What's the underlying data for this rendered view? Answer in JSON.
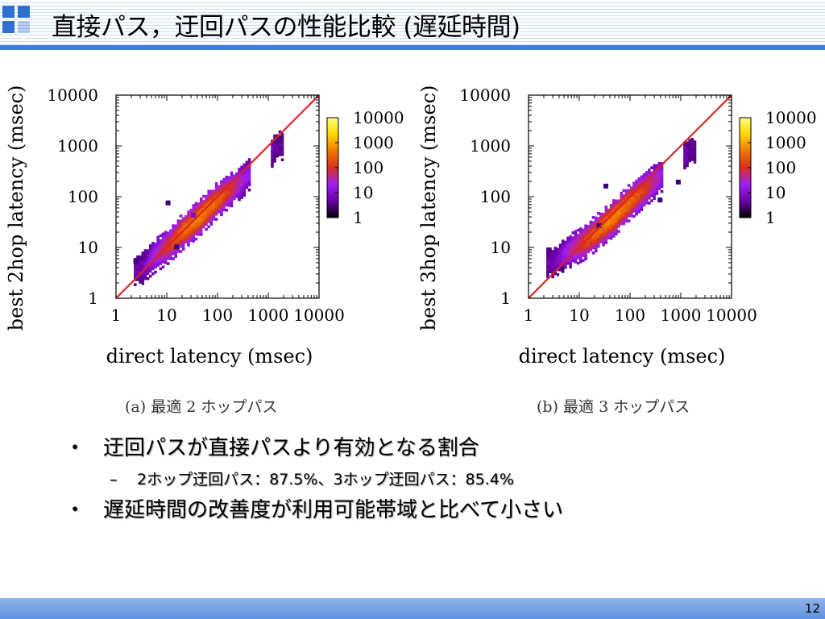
{
  "slide": {
    "title": "直接パス，迂回パスの性能比較 (遅延時間)",
    "page_number": "12",
    "bullets": [
      {
        "level": 1,
        "mark": "・",
        "text": "迂回パスが直接パスより有効となる割合"
      },
      {
        "level": 2,
        "mark": "–",
        "text": "2ホップ迂回パス：87.5%、3ホップ迂回パス：85.4%"
      },
      {
        "level": 1,
        "mark": "・",
        "text": "遅延時間の改善度が利用可能帯域と比べて小さい"
      }
    ]
  },
  "chart_data": [
    {
      "type": "heatmap",
      "caption": "(a) 最適 2 ホップパス",
      "xlabel": "direct latency (msec)",
      "ylabel": "best 2hop latency (msec)",
      "x_scale": "log",
      "y_scale": "log",
      "xlim": [
        1,
        10000
      ],
      "ylim": [
        1,
        10000
      ],
      "x_ticks": [
        "1",
        "10",
        "100",
        "1000",
        "10000"
      ],
      "y_ticks": [
        "1",
        "10",
        "100",
        "1000",
        "10000"
      ],
      "colorbar": {
        "scale": "log",
        "ticks": [
          "10000",
          "1000",
          "100",
          "10",
          "1"
        ],
        "colors": [
          "#000000",
          "#6a00a8",
          "#a020f0",
          "#d83020",
          "#f07800",
          "#ffd700",
          "#ffff80"
        ]
      },
      "reference_line": {
        "from": [
          1,
          1
        ],
        "to": [
          10000,
          10000
        ],
        "color": "#e02020"
      },
      "density_ridge": [
        {
          "x": 3,
          "y": 3.5,
          "value": 3
        },
        {
          "x": 5,
          "y": 6,
          "value": 20
        },
        {
          "x": 10,
          "y": 10,
          "value": 150
        },
        {
          "x": 20,
          "y": 20,
          "value": 600
        },
        {
          "x": 40,
          "y": 35,
          "value": 1000
        },
        {
          "x": 80,
          "y": 70,
          "value": 600
        },
        {
          "x": 150,
          "y": 120,
          "value": 200
        },
        {
          "x": 300,
          "y": 200,
          "value": 20
        },
        {
          "x": 1500,
          "y": 1000,
          "value": 2
        }
      ]
    },
    {
      "type": "heatmap",
      "caption": "(b) 最適 3 ホップパス",
      "xlabel": "direct latency (msec)",
      "ylabel": "best 3hop latency (msec)",
      "x_scale": "log",
      "y_scale": "log",
      "xlim": [
        1,
        10000
      ],
      "ylim": [
        1,
        10000
      ],
      "x_ticks": [
        "1",
        "10",
        "100",
        "1000",
        "10000"
      ],
      "y_ticks": [
        "1",
        "10",
        "100",
        "1000",
        "10000"
      ],
      "colorbar": {
        "scale": "log",
        "ticks": [
          "10000",
          "1000",
          "100",
          "10",
          "1"
        ],
        "colors": [
          "#000000",
          "#6a00a8",
          "#a020f0",
          "#d83020",
          "#f07800",
          "#ffd700",
          "#ffff80"
        ]
      },
      "reference_line": {
        "from": [
          1,
          1
        ],
        "to": [
          10000,
          10000
        ],
        "color": "#e02020"
      },
      "density_ridge": [
        {
          "x": 3,
          "y": 5,
          "value": 3
        },
        {
          "x": 6,
          "y": 8,
          "value": 30
        },
        {
          "x": 12,
          "y": 12,
          "value": 200
        },
        {
          "x": 25,
          "y": 22,
          "value": 700
        },
        {
          "x": 50,
          "y": 40,
          "value": 1000
        },
        {
          "x": 100,
          "y": 80,
          "value": 500
        },
        {
          "x": 200,
          "y": 140,
          "value": 150
        },
        {
          "x": 400,
          "y": 250,
          "value": 15
        },
        {
          "x": 1500,
          "y": 800,
          "value": 2
        }
      ]
    }
  ]
}
